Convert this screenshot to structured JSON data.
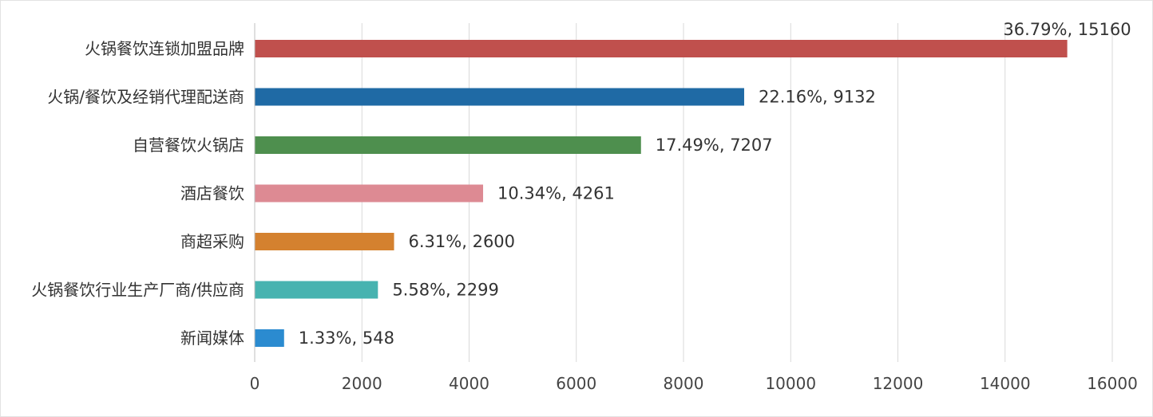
{
  "chart_data": {
    "type": "bar",
    "orientation": "horizontal",
    "title": "",
    "xlabel": "",
    "ylabel": "",
    "xlim": [
      0,
      16000
    ],
    "x_ticks": [
      "0",
      "2000",
      "4000",
      "6000",
      "8000",
      "10000",
      "12000",
      "14000",
      "16000"
    ],
    "grid": true,
    "legend": "none",
    "categories": [
      "火锅餐饮连锁加盟品牌",
      "火锅/餐饮及经销代理配送商",
      "自营餐饮火锅店",
      "酒店餐饮",
      "商超采购",
      "火锅餐饮行业生产厂商/供应商",
      "新闻媒体"
    ],
    "values": [
      15160,
      9132,
      7207,
      4261,
      2600,
      2299,
      548
    ],
    "percentages": [
      "36.79%",
      "22.16%",
      "17.49%",
      "10.34%",
      "6.31%",
      "5.58%",
      "1.33%"
    ],
    "data_labels": [
      "36.79%, 15160",
      "22.16%, 9132",
      "17.49%, 7207",
      "10.34%, 4261",
      "6.31%, 2600",
      "5.58%, 2299",
      "1.33%, 548"
    ],
    "colors": [
      "#c0504d",
      "#1f6aa5",
      "#4e8f4e",
      "#dd8a93",
      "#d4812f",
      "#47b3b0",
      "#2b8bd0"
    ]
  }
}
